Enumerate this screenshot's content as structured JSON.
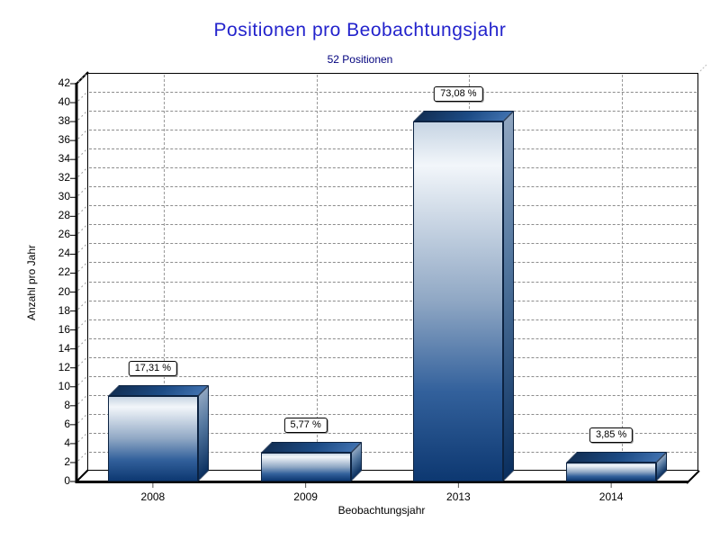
{
  "chart_data": {
    "type": "bar",
    "style": "3d-vertical-bars",
    "title": "Positionen pro Beobachtungsjahr",
    "subtitle": "52 Positionen",
    "xlabel": "Beobachtungsjahr",
    "ylabel": "Anzahl pro Jahr",
    "categories": [
      "2008",
      "2009",
      "2013",
      "2014"
    ],
    "values": [
      9,
      3,
      38,
      2
    ],
    "bar_labels": [
      "17,31 %",
      "5,77 %",
      "73,08 %",
      "3,85 %"
    ],
    "total_positions": 52,
    "ylim": [
      0,
      42
    ],
    "ytick_step": 2,
    "grid": "dashed horizontal gridlines every 2 units + dashed vertical line at each category center",
    "legend": "none",
    "colors": {
      "title": "#2323cc",
      "subtitle": "#00007d",
      "bar_gradient_light": "#f2f6fa",
      "bar_gradient_dark": "#0d3871",
      "bar_top_face": "#1c4b85",
      "grid": "#8c8c8c",
      "axis": "#000000",
      "background": "#ffffff"
    }
  }
}
